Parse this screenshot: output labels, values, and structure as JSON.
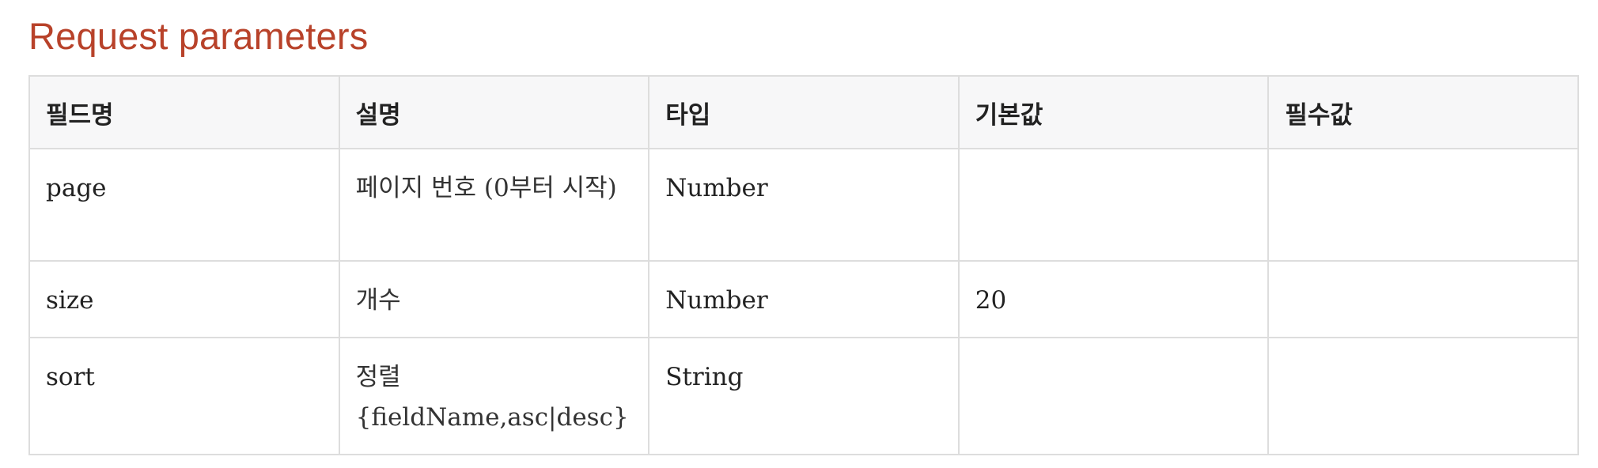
{
  "section": {
    "title": "Request parameters"
  },
  "table": {
    "headers": [
      "필드명",
      "설명",
      "타입",
      "기본값",
      "필수값"
    ],
    "rows": [
      {
        "field": "page",
        "description": "페이지 번호 (0부터 시작)",
        "type": "Number",
        "default": "",
        "required": ""
      },
      {
        "field": "size",
        "description": "개수",
        "type": "Number",
        "default": "20",
        "required": ""
      },
      {
        "field": "sort",
        "description": "정렬 {fieldName,asc|desc}",
        "type": "String",
        "default": "",
        "required": ""
      }
    ]
  },
  "colors": {
    "title": "#b8422a",
    "border": "#dddddd",
    "header_bg": "#f7f7f8",
    "text": "#222222"
  }
}
